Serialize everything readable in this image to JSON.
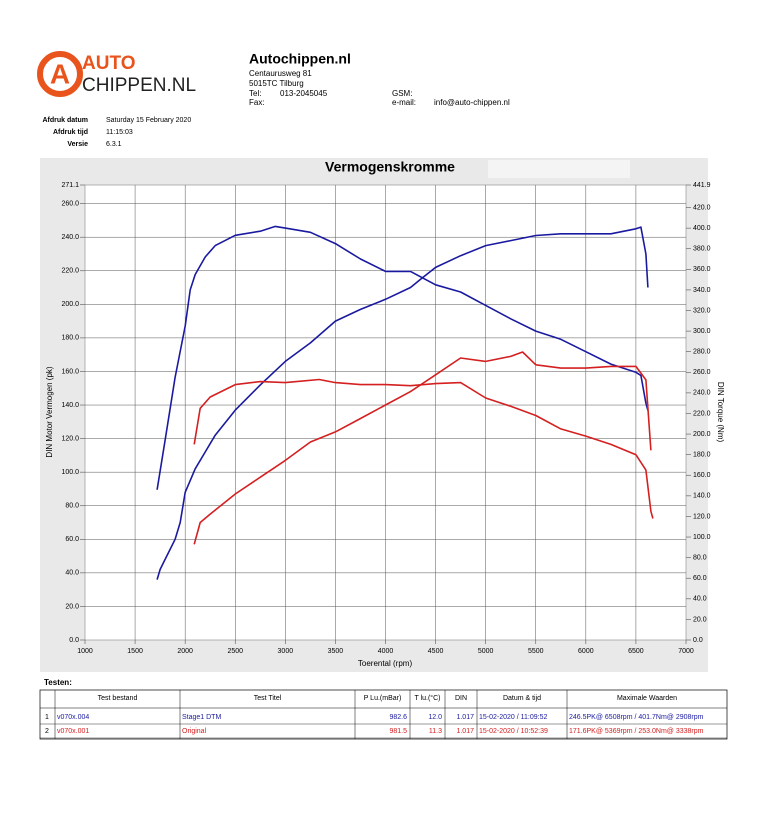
{
  "header": {
    "logo_top": "AUTO",
    "logo_bottom": "CHIPPEN.NL",
    "company": "Autochippen.nl",
    "street": "Centaurusweg 81",
    "city": "5015TC Tilburg",
    "tel_label": "Tel:",
    "tel": "013-2045045",
    "fax_label": "Fax:",
    "gsm_label": "GSM:",
    "email_label": "e-mail:",
    "email": "info@auto-chippen.nl"
  },
  "meta": [
    {
      "label": "Afdruk datum",
      "value": "Saturday 15 February 2020"
    },
    {
      "label": "Afdruk tijd",
      "value": "11:15:03"
    },
    {
      "label": "Versie",
      "value": "6.3.1"
    }
  ],
  "chart_data": {
    "type": "line",
    "title": "Vermogenskromme",
    "x_label": "Toerental (rpm)",
    "y_label": "DIN Motor Vermogen (pk)",
    "y2_label": "DIN Torque (Nm)",
    "grid": true,
    "xlim": [
      1000,
      7000
    ],
    "xticks": [
      1000,
      1500,
      2000,
      2500,
      3000,
      3500,
      4000,
      4500,
      5000,
      5500,
      6000,
      6500,
      7000
    ],
    "ylim": [
      0,
      271.1
    ],
    "yticks": [
      {
        "value": 0,
        "label": "0.0"
      },
      {
        "value": 20,
        "label": "20.0"
      },
      {
        "value": 40,
        "label": "40.0"
      },
      {
        "value": 60,
        "label": "60.0"
      },
      {
        "value": 80,
        "label": "80.0"
      },
      {
        "value": 100,
        "label": "100.0"
      },
      {
        "value": 120,
        "label": "120.0"
      },
      {
        "value": 140,
        "label": "140.0"
      },
      {
        "value": 160,
        "label": "160.0"
      },
      {
        "value": 180,
        "label": "180.0"
      },
      {
        "value": 200,
        "label": "200.0"
      },
      {
        "value": 220,
        "label": "220.0"
      },
      {
        "value": 240,
        "label": "240.0"
      },
      {
        "value": 260,
        "label": "260.0"
      },
      271.1
    ],
    "y2lim": [
      0,
      441.9
    ],
    "y2ticks": [
      {
        "value": 0,
        "label": "0.0"
      },
      {
        "value": 20,
        "label": "20.0"
      },
      {
        "value": 40,
        "label": "40.0"
      },
      {
        "value": 60,
        "label": "60.0"
      },
      {
        "value": 80,
        "label": "80.0"
      },
      {
        "value": 100,
        "label": "100.0"
      },
      {
        "value": 120,
        "label": "120.0"
      },
      {
        "value": 140,
        "label": "140.0"
      },
      {
        "value": 160,
        "label": "160.0"
      },
      {
        "value": 180,
        "label": "180.0"
      },
      {
        "value": 200,
        "label": "200.0"
      },
      {
        "value": 220,
        "label": "220.0"
      },
      {
        "value": 240,
        "label": "240.0"
      },
      {
        "value": 260,
        "label": "260.0"
      },
      {
        "value": 280,
        "label": "280.0"
      },
      {
        "value": 300,
        "label": "300.0"
      },
      {
        "value": 320,
        "label": "320.0"
      },
      {
        "value": 340,
        "label": "340.0"
      },
      {
        "value": 360,
        "label": "360.0"
      },
      {
        "value": 380,
        "label": "380.0"
      },
      {
        "value": 400,
        "label": "400.0"
      },
      {
        "value": 420,
        "label": "420.0"
      },
      441.9
    ],
    "series": [
      {
        "color": "#1a1aa0",
        "axis": "y",
        "x": [
          1720,
          1750,
          1800,
          1900,
          1950,
          2000,
          2100,
          2200,
          2300,
          2500,
          2750,
          3000,
          3250,
          3500,
          3750,
          4000,
          4250,
          4350,
          4500,
          4750,
          5000,
          5250,
          5500,
          5750,
          6000,
          6250,
          6500,
          6550,
          6600,
          6620
        ],
        "values": [
          36,
          42,
          48,
          60,
          70,
          88,
          102,
          112,
          122,
          137,
          152,
          166,
          177,
          190,
          197,
          203,
          210,
          215,
          222,
          229,
          235,
          238,
          241,
          242,
          242,
          242,
          245,
          246,
          230,
          210
        ]
      },
      {
        "color": "#1a1aa0",
        "axis": "y2",
        "x": [
          1720,
          1800,
          1900,
          2000,
          2050,
          2100,
          2200,
          2300,
          2500,
          2750,
          2900,
          3000,
          3250,
          3500,
          3750,
          4000,
          4250,
          4500,
          4750,
          5000,
          5250,
          5500,
          5750,
          6000,
          6250,
          6500,
          6550,
          6600,
          6620
        ],
        "values": [
          146,
          194,
          255,
          305,
          340,
          355,
          372,
          383,
          393,
          397,
          401.7,
          400,
          396,
          385,
          370,
          358,
          358,
          345,
          338,
          325,
          312,
          300,
          292,
          280,
          268,
          260,
          257,
          230,
          223
        ]
      },
      {
        "color": "#d42020",
        "axis": "y",
        "x": [
          2090,
          2150,
          2250,
          2500,
          2750,
          3000,
          3250,
          3500,
          3750,
          4000,
          4250,
          4500,
          4750,
          5000,
          5250,
          5369,
          5500,
          5750,
          6000,
          6250,
          6500,
          6600,
          6650
        ],
        "values": [
          57,
          70,
          75,
          87,
          97,
          107,
          118,
          124,
          132,
          140,
          148,
          158,
          168,
          166,
          169,
          171.6,
          164,
          162,
          162,
          163,
          163,
          155,
          113
        ]
      },
      {
        "color": "#d42020",
        "axis": "y2",
        "x": [
          2090,
          2150,
          2250,
          2500,
          2750,
          3000,
          3338,
          3500,
          3750,
          4000,
          4250,
          4500,
          4750,
          5000,
          5250,
          5500,
          5750,
          6000,
          6250,
          6500,
          6600,
          6650,
          6670
        ],
        "values": [
          190,
          225,
          236,
          248,
          251,
          250,
          253,
          250,
          248,
          248,
          247,
          249,
          250,
          235,
          227,
          218,
          205,
          198,
          190,
          180,
          165,
          125,
          118
        ]
      }
    ]
  },
  "table": {
    "title": "Testen:",
    "columns": [
      "Test bestand",
      "Test Titel",
      "P Lu.(mBar)",
      "T lu.(°C)",
      "DIN",
      "Datum & tijd",
      "Maximale Waarden"
    ],
    "rows": [
      {
        "color": "#1a1aa0",
        "cells": [
          "1",
          "v070x.004",
          "Stage1 DTM",
          "982.6",
          "12.0",
          "1.017",
          "15-02-2020 / 11:09:52",
          "246.5PK@ 6508rpm / 401.7Nm@ 2908rpm"
        ]
      },
      {
        "color": "#d42020",
        "cells": [
          "2",
          "v070x.001",
          "Original",
          "981.5",
          "11.3",
          "1.017",
          "15-02-2020 / 10:52:39",
          "171.6PK@ 5369rpm / 253.0Nm@ 3338rpm"
        ]
      }
    ]
  }
}
